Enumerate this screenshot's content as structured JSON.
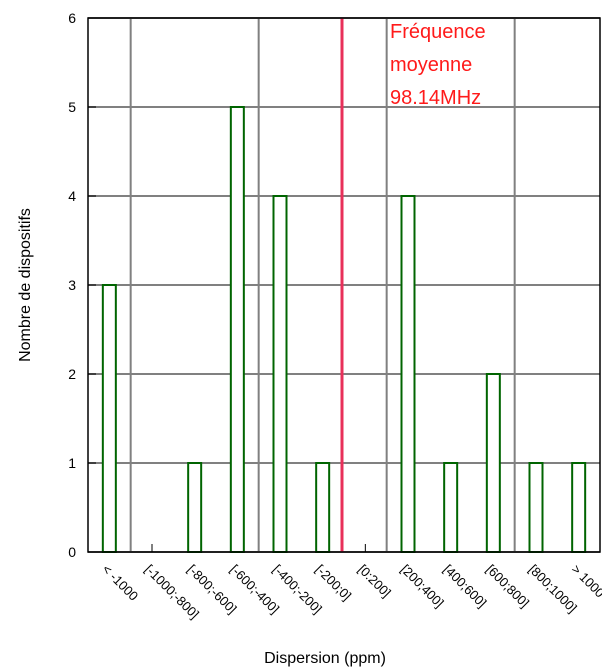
{
  "chart_data": {
    "type": "bar",
    "categories": [
      "< -1000",
      "[-1000;-800]",
      "[-800;-600]",
      "[-600;-400]",
      "[-400;-200]",
      "[-200;0]",
      "[0:200]",
      "[200;400]",
      "[400;600]",
      "[600;800]",
      "[800;1000]",
      "> 1000"
    ],
    "values": [
      3,
      0,
      1,
      5,
      4,
      1,
      0,
      4,
      1,
      2,
      1,
      1
    ],
    "color": "#006400",
    "x_label": "Dispersion (ppm)",
    "y_label": "Nombre de dispositifs",
    "ylim": [
      0,
      6
    ],
    "yticks": [
      0,
      1,
      2,
      3,
      4,
      5,
      6
    ],
    "grid": true,
    "annotation": [
      "Fréquence",
      "moyenne",
      "98.14MHz"
    ],
    "annotation_color": "#ff1a1a",
    "mean_line_color": "#e8305a"
  }
}
